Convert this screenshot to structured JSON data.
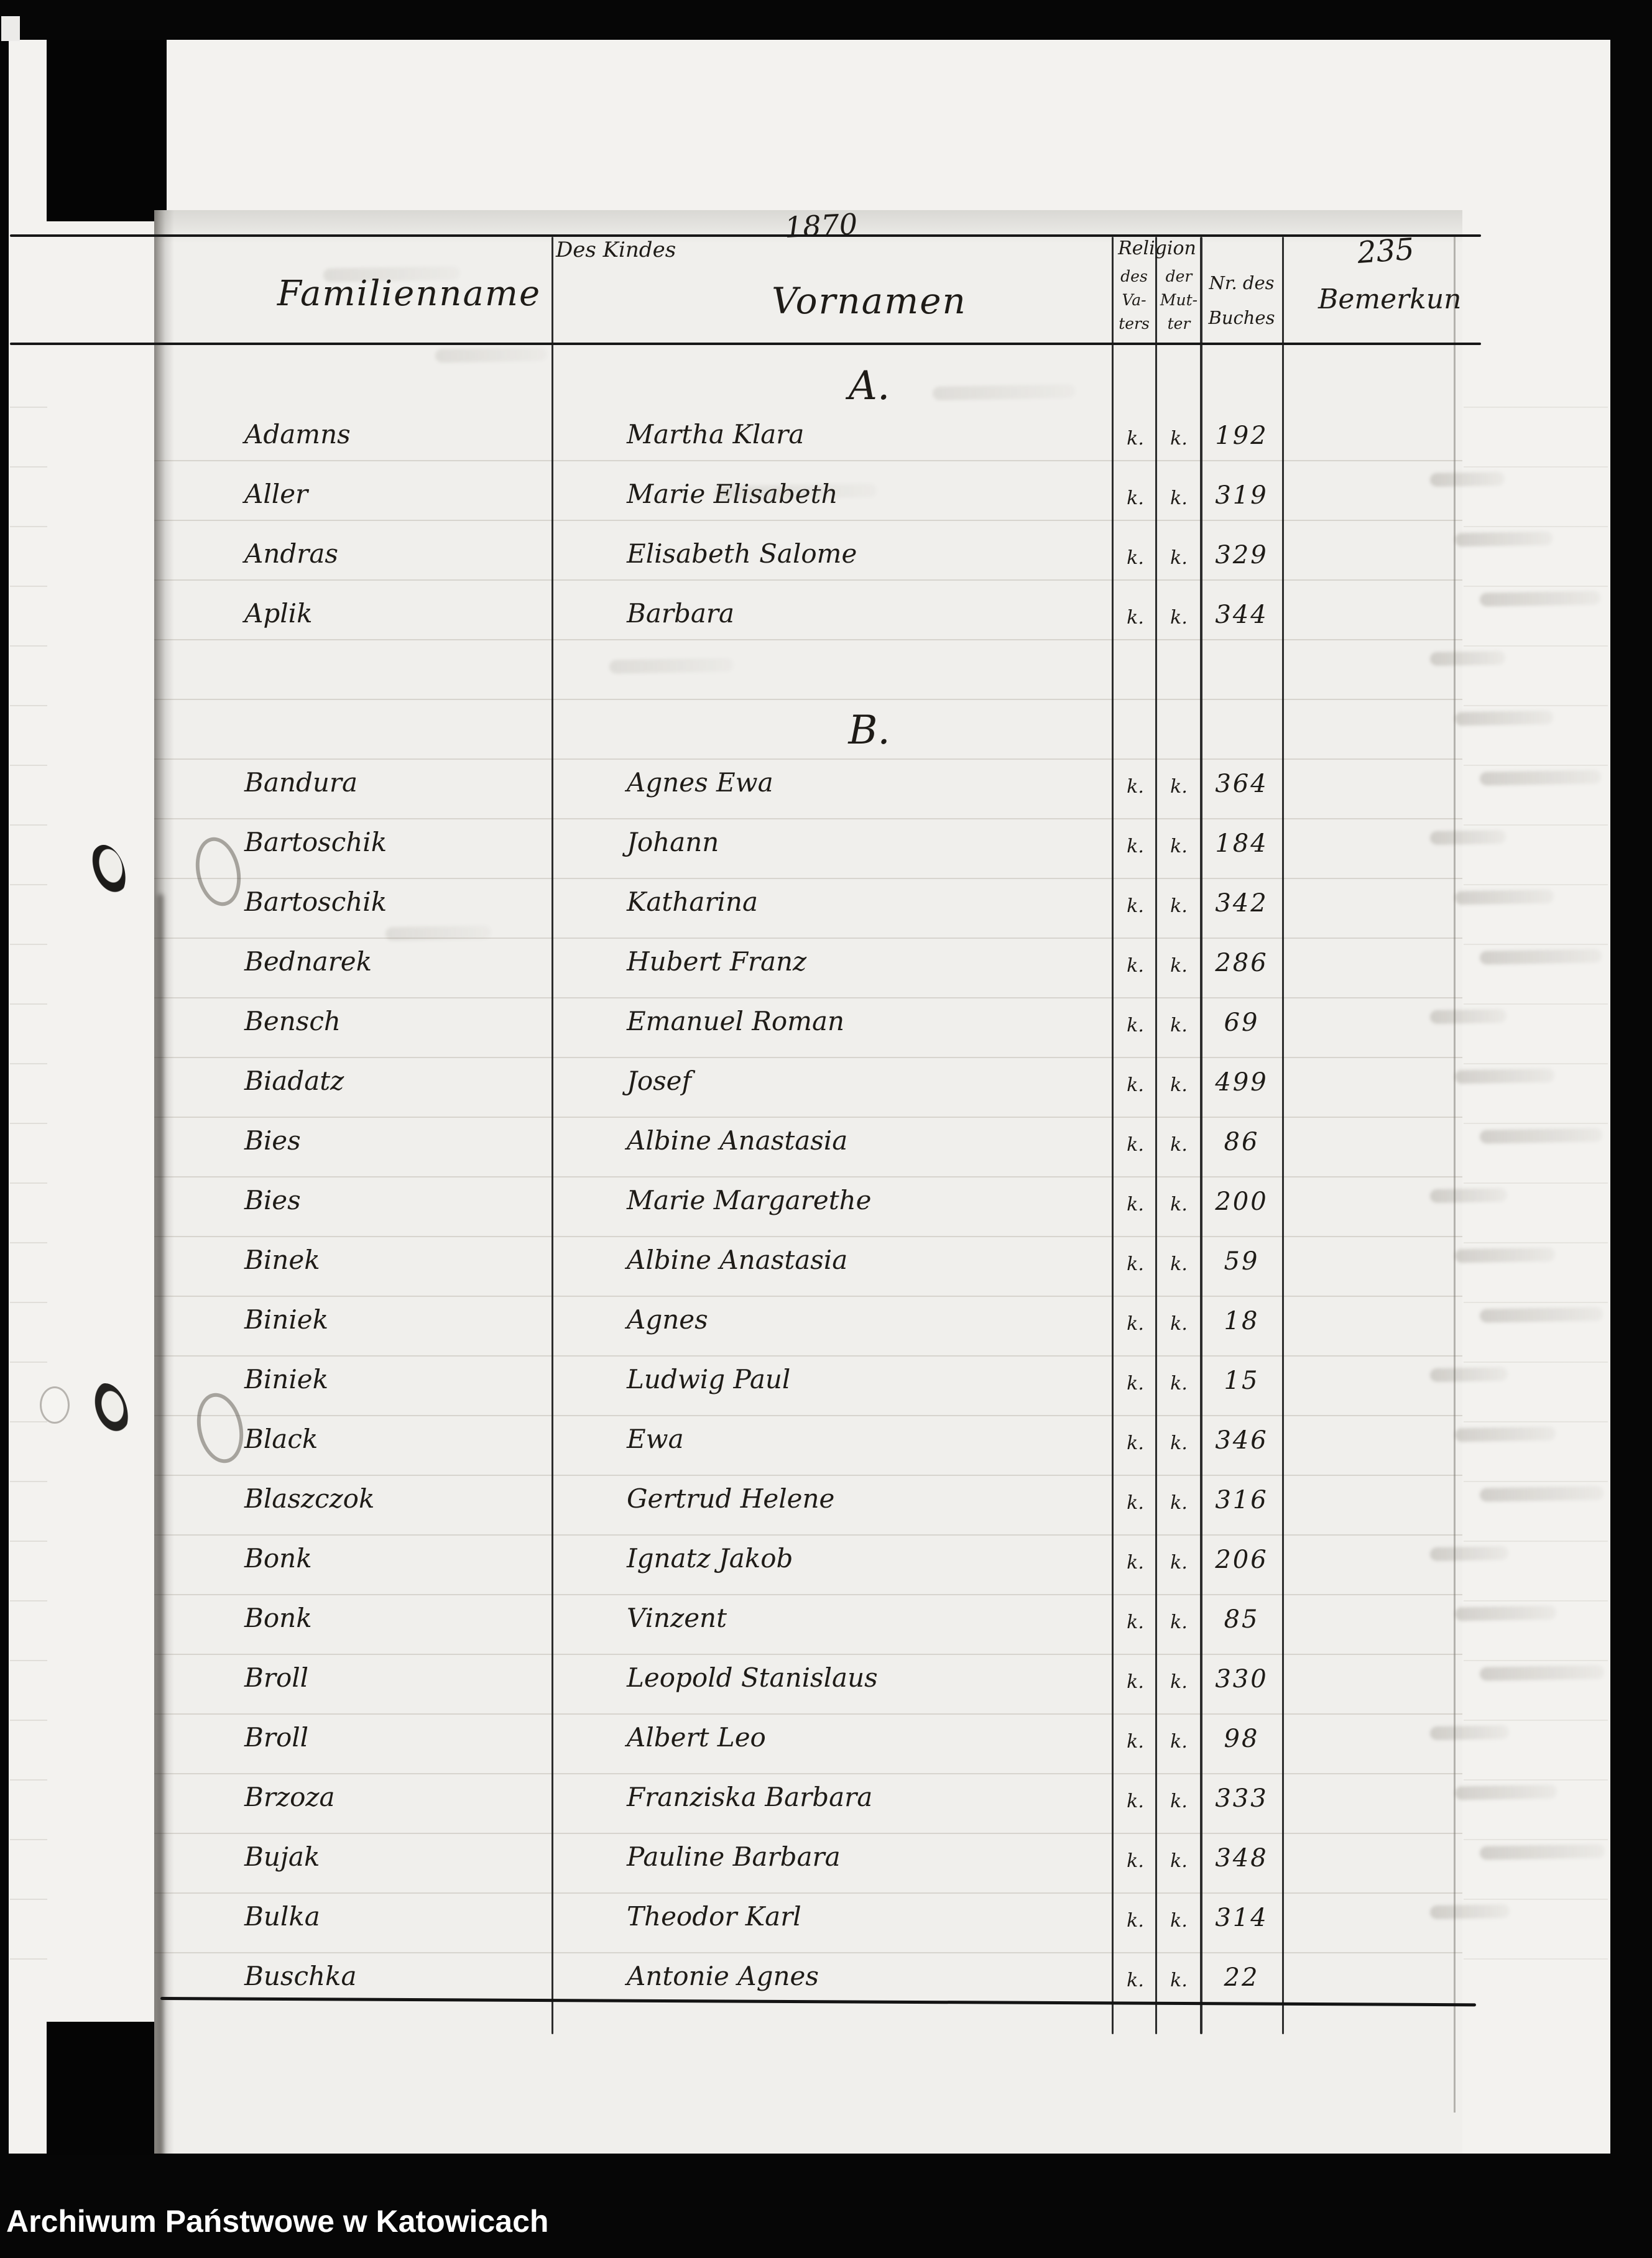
{
  "archive_footer": "Archiwum Państwowe w Katowicach",
  "register": {
    "year": "1870",
    "page_number": "235",
    "headers": {
      "of_the_child": "Des Kindes",
      "family_name": "Familienname",
      "given_names": "Vornamen",
      "religion": "Religion",
      "religion_father_lines": [
        "des",
        "Va-",
        "ters"
      ],
      "religion_mother_lines": [
        "der",
        "Mut-",
        "ter"
      ],
      "book_number_lines": [
        "Nr. des",
        "Buches"
      ],
      "remarks": "Bemerkun"
    },
    "sections": [
      {
        "letter": "A.",
        "rows": [
          {
            "family": "Adamns",
            "given": "Martha Klara",
            "rel_father": "k.",
            "rel_mother": "k.",
            "book_no": "192"
          },
          {
            "family": "Aller",
            "given": "Marie Elisabeth",
            "rel_father": "k.",
            "rel_mother": "k.",
            "book_no": "319"
          },
          {
            "family": "Andras",
            "given": "Elisabeth Salome",
            "rel_father": "k.",
            "rel_mother": "k.",
            "book_no": "329"
          },
          {
            "family": "Aplik",
            "given": "Barbara",
            "rel_father": "k.",
            "rel_mother": "k.",
            "book_no": "344"
          }
        ]
      },
      {
        "letter": "B.",
        "rows": [
          {
            "family": "Bandura",
            "given": "Agnes Ewa",
            "rel_father": "k.",
            "rel_mother": "k.",
            "book_no": "364"
          },
          {
            "family": "Bartoschik",
            "given": "Johann",
            "rel_father": "k.",
            "rel_mother": "k.",
            "book_no": "184"
          },
          {
            "family": "Bartoschik",
            "given": "Katharina",
            "rel_father": "k.",
            "rel_mother": "k.",
            "book_no": "342"
          },
          {
            "family": "Bednarek",
            "given": "Hubert Franz",
            "rel_father": "k.",
            "rel_mother": "k.",
            "book_no": "286"
          },
          {
            "family": "Bensch",
            "given": "Emanuel Roman",
            "rel_father": "k.",
            "rel_mother": "k.",
            "book_no": "69"
          },
          {
            "family": "Biadatz",
            "given": "Josef",
            "rel_father": "k.",
            "rel_mother": "k.",
            "book_no": "499"
          },
          {
            "family": "Bies",
            "given": "Albine Anastasia",
            "rel_father": "k.",
            "rel_mother": "k.",
            "book_no": "86"
          },
          {
            "family": "Bies",
            "given": "Marie Margarethe",
            "rel_father": "k.",
            "rel_mother": "k.",
            "book_no": "200"
          },
          {
            "family": "Binek",
            "given": "Albine Anastasia",
            "rel_father": "k.",
            "rel_mother": "k.",
            "book_no": "59"
          },
          {
            "family": "Biniek",
            "given": "Agnes",
            "rel_father": "k.",
            "rel_mother": "k.",
            "book_no": "18"
          },
          {
            "family": "Biniek",
            "given": "Ludwig Paul",
            "rel_father": "k.",
            "rel_mother": "k.",
            "book_no": "15"
          },
          {
            "family": "Black",
            "given": "Ewa",
            "rel_father": "k.",
            "rel_mother": "k.",
            "book_no": "346"
          },
          {
            "family": "Blaszczok",
            "given": "Gertrud Helene",
            "rel_father": "k.",
            "rel_mother": "k.",
            "book_no": "316"
          },
          {
            "family": "Bonk",
            "given": "Ignatz Jakob",
            "rel_father": "k.",
            "rel_mother": "k.",
            "book_no": "206"
          },
          {
            "family": "Bonk",
            "given": "Vinzent",
            "rel_father": "k.",
            "rel_mother": "k.",
            "book_no": "85"
          },
          {
            "family": "Broll",
            "given": "Leopold Stanislaus",
            "rel_father": "k.",
            "rel_mother": "k.",
            "book_no": "330"
          },
          {
            "family": "Broll",
            "given": "Albert Leo",
            "rel_father": "k.",
            "rel_mother": "k.",
            "book_no": "98"
          },
          {
            "family": "Brzoza",
            "given": "Franziska Barbara",
            "rel_father": "k.",
            "rel_mother": "k.",
            "book_no": "333"
          },
          {
            "family": "Bujak",
            "given": "Pauline Barbara",
            "rel_father": "k.",
            "rel_mother": "k.",
            "book_no": "348"
          },
          {
            "family": "Bulka",
            "given": "Theodor Karl",
            "rel_father": "k.",
            "rel_mother": "k.",
            "book_no": "314"
          },
          {
            "family": "Buschka",
            "given": "Antonie Agnes",
            "rel_father": "k.",
            "rel_mother": "k.",
            "book_no": "22"
          }
        ]
      }
    ]
  }
}
